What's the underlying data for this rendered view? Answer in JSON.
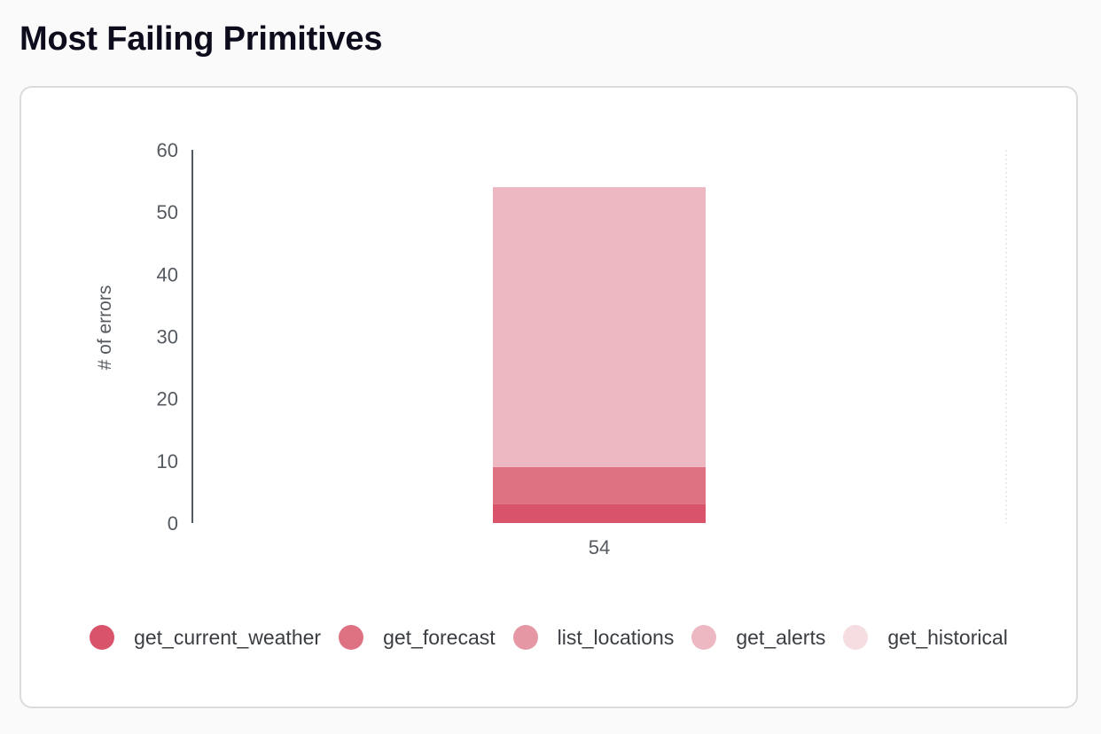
{
  "header": {
    "title": "Most Failing Primitives"
  },
  "chart_data": {
    "type": "bar",
    "stacked": true,
    "categories": [
      "54"
    ],
    "ylabel": "# of errors",
    "xlabel": "",
    "ylim": [
      0,
      60
    ],
    "yticks": [
      0,
      10,
      20,
      30,
      40,
      50,
      60
    ],
    "series": [
      {
        "name": "get_current_weather",
        "values": [
          3
        ],
        "color": "#d9536a"
      },
      {
        "name": "get_forecast",
        "values": [
          6
        ],
        "color": "#de7282"
      },
      {
        "name": "list_locations",
        "values": [
          0
        ],
        "color": "#e598a4"
      },
      {
        "name": "get_alerts",
        "values": [
          45
        ],
        "color": "#edb8c2"
      },
      {
        "name": "get_historical",
        "values": [
          0
        ],
        "color": "#f5dde2"
      }
    ],
    "legend_position": "bottom",
    "grid": false
  }
}
